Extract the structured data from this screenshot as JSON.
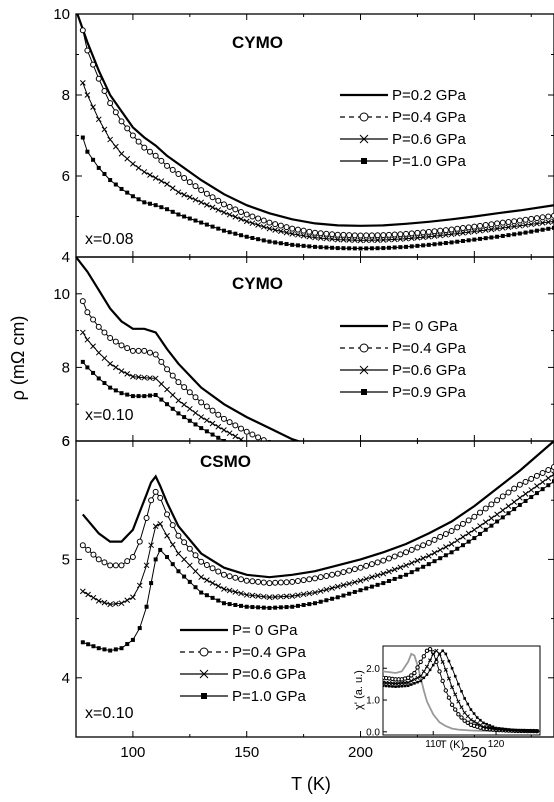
{
  "xlabel": "T (K)",
  "ylabel": "ρ (mΩ cm)",
  "chart_data": [
    {
      "type": "line",
      "title": "CYMO",
      "annotation": "x=0.08",
      "xlim": [
        75,
        285
      ],
      "ylim": [
        4,
        10
      ],
      "xticks": [
        100,
        150,
        200,
        250
      ],
      "yticks": [
        4,
        6,
        8,
        10
      ],
      "legend_position": "right",
      "series": [
        {
          "name": "P=0.2 GPa",
          "marker": "none",
          "dash": "solid",
          "x": [
            75,
            80,
            85,
            90,
            95,
            100,
            105,
            110,
            115,
            120,
            130,
            140,
            150,
            160,
            170,
            180,
            190,
            200,
            210,
            220,
            230,
            240,
            250,
            260,
            270,
            285
          ],
          "y": [
            10.1,
            9.3,
            8.6,
            8.0,
            7.6,
            7.2,
            6.95,
            6.75,
            6.5,
            6.3,
            5.9,
            5.55,
            5.28,
            5.08,
            4.93,
            4.83,
            4.78,
            4.77,
            4.78,
            4.82,
            4.87,
            4.93,
            5.0,
            5.08,
            5.15,
            5.28
          ]
        },
        {
          "name": "P=0.4 GPa",
          "marker": "circle",
          "dash": "dash",
          "x": [
            78,
            80,
            85,
            90,
            95,
            100,
            105,
            110,
            115,
            120,
            130,
            140,
            150,
            160,
            170,
            180,
            190,
            200,
            210,
            220,
            230,
            240,
            250,
            260,
            270,
            285
          ],
          "y": [
            9.6,
            9.1,
            8.4,
            7.8,
            7.35,
            7.0,
            6.7,
            6.5,
            6.25,
            6.05,
            5.65,
            5.3,
            5.05,
            4.85,
            4.7,
            4.6,
            4.55,
            4.53,
            4.54,
            4.57,
            4.62,
            4.68,
            4.75,
            4.83,
            4.9,
            5.02
          ]
        },
        {
          "name": "P=0.6 GPa",
          "marker": "cross",
          "dash": "solid",
          "x": [
            78,
            80,
            85,
            90,
            95,
            100,
            105,
            110,
            115,
            120,
            130,
            140,
            150,
            160,
            170,
            180,
            190,
            200,
            210,
            220,
            230,
            240,
            250,
            260,
            270,
            285
          ],
          "y": [
            8.3,
            8.0,
            7.4,
            6.9,
            6.55,
            6.3,
            6.1,
            5.95,
            5.8,
            5.6,
            5.35,
            5.1,
            4.88,
            4.7,
            4.57,
            4.48,
            4.43,
            4.41,
            4.42,
            4.45,
            4.5,
            4.56,
            4.63,
            4.7,
            4.77,
            4.88
          ]
        },
        {
          "name": "P=1.0 GPa",
          "marker": "square",
          "dash": "solid",
          "x": [
            78,
            80,
            85,
            90,
            95,
            100,
            105,
            110,
            115,
            120,
            130,
            140,
            150,
            160,
            170,
            180,
            190,
            200,
            210,
            220,
            230,
            240,
            250,
            260,
            270,
            285
          ],
          "y": [
            6.95,
            6.6,
            6.2,
            5.9,
            5.68,
            5.5,
            5.35,
            5.28,
            5.18,
            5.05,
            4.85,
            4.65,
            4.5,
            4.38,
            4.3,
            4.25,
            4.22,
            4.21,
            4.22,
            4.25,
            4.3,
            4.36,
            4.43,
            4.5,
            4.58,
            4.72
          ]
        }
      ]
    },
    {
      "type": "line",
      "title": "CYMO",
      "annotation": "x=0.10",
      "xlim": [
        75,
        285
      ],
      "ylim": [
        6,
        11
      ],
      "xticks": [
        100,
        150,
        200,
        250
      ],
      "yticks": [
        6,
        8,
        10
      ],
      "legend_position": "right",
      "series": [
        {
          "name": "P=  0  GPa",
          "marker": "none",
          "dash": "solid",
          "x": [
            75,
            80,
            85,
            90,
            95,
            100,
            105,
            110,
            115,
            120,
            130,
            140,
            150,
            160,
            170,
            180,
            190,
            200,
            210,
            220,
            230,
            240,
            250,
            260,
            270,
            285
          ],
          "y": [
            11.0,
            10.6,
            10.1,
            9.6,
            9.25,
            9.05,
            9.05,
            8.95,
            8.5,
            8.1,
            7.45,
            7.0,
            6.65,
            6.35,
            6.05,
            5.85,
            5.7,
            5.6,
            5.55,
            5.5,
            5.5,
            5.5,
            5.5,
            5.52,
            5.57,
            5.7
          ]
        },
        {
          "name": "P=0.4 GPa",
          "marker": "circle",
          "dash": "dash",
          "x": [
            78,
            80,
            85,
            90,
            95,
            100,
            105,
            110,
            115,
            120,
            130,
            140,
            150,
            160,
            170,
            180,
            190,
            200,
            210,
            220,
            230,
            240,
            250,
            260,
            270,
            285
          ],
          "y": [
            9.8,
            9.5,
            9.1,
            8.8,
            8.6,
            8.45,
            8.45,
            8.35,
            7.95,
            7.6,
            7.05,
            6.6,
            6.25,
            5.95,
            5.7,
            5.52,
            5.4,
            5.32,
            5.28,
            5.25,
            5.25,
            5.26,
            5.28,
            5.3,
            5.35,
            5.45
          ]
        },
        {
          "name": "P=0.6 GPa",
          "marker": "cross",
          "dash": "solid",
          "x": [
            78,
            80,
            85,
            90,
            95,
            100,
            105,
            110,
            115,
            120,
            130,
            140,
            150,
            160,
            170,
            180,
            190,
            200,
            210,
            220,
            230,
            240,
            250,
            260,
            270,
            285
          ],
          "y": [
            8.95,
            8.75,
            8.4,
            8.1,
            7.9,
            7.75,
            7.72,
            7.7,
            7.4,
            7.1,
            6.65,
            6.3,
            5.95,
            5.7,
            5.48,
            5.32,
            5.22,
            5.15,
            5.12,
            5.1,
            5.1,
            5.11,
            5.13,
            5.16,
            5.2,
            5.3
          ]
        },
        {
          "name": "P=0.9 GPa",
          "marker": "square",
          "dash": "solid",
          "x": [
            78,
            80,
            85,
            90,
            95,
            100,
            105,
            110,
            115,
            120,
            130,
            140,
            150,
            160,
            170,
            180,
            190,
            200,
            210,
            220,
            230,
            240,
            250,
            260,
            270,
            285
          ],
          "y": [
            8.15,
            8.0,
            7.7,
            7.45,
            7.3,
            7.22,
            7.22,
            7.25,
            7.0,
            6.75,
            6.35,
            6.0,
            5.7,
            5.48,
            5.3,
            5.15,
            5.07,
            5.02,
            5.0,
            4.99,
            4.99,
            5.0,
            5.02,
            5.05,
            5.1,
            5.2
          ]
        }
      ]
    },
    {
      "type": "line",
      "title": "CSMO",
      "annotation": "x=0.10",
      "xlim": [
        75,
        285
      ],
      "ylim": [
        3.5,
        6
      ],
      "xticks": [
        100,
        150,
        200,
        250
      ],
      "yticks": [
        4,
        5,
        6
      ],
      "legend_position": "bottom-left",
      "series": [
        {
          "name": "P=   0 GPa",
          "marker": "none",
          "dash": "solid",
          "x": [
            78,
            85,
            90,
            95,
            100,
            103,
            106,
            108,
            110,
            112,
            115,
            120,
            130,
            140,
            150,
            160,
            170,
            180,
            190,
            200,
            210,
            220,
            230,
            240,
            250,
            260,
            270,
            285
          ],
          "y": [
            5.38,
            5.22,
            5.15,
            5.15,
            5.25,
            5.4,
            5.55,
            5.65,
            5.7,
            5.62,
            5.48,
            5.28,
            5.05,
            4.93,
            4.87,
            4.85,
            4.87,
            4.9,
            4.95,
            5.0,
            5.06,
            5.13,
            5.22,
            5.32,
            5.45,
            5.6,
            5.75,
            6.0
          ]
        },
        {
          "name": "P=0.4 GPa",
          "marker": "circle",
          "dash": "dash",
          "x": [
            78,
            85,
            90,
            95,
            100,
            103,
            106,
            108,
            110,
            112,
            115,
            120,
            130,
            140,
            150,
            160,
            170,
            180,
            190,
            200,
            210,
            220,
            230,
            240,
            250,
            260,
            270,
            285
          ],
          "y": [
            5.12,
            5.0,
            4.95,
            4.95,
            5.02,
            5.15,
            5.35,
            5.5,
            5.57,
            5.52,
            5.38,
            5.2,
            4.98,
            4.87,
            4.82,
            4.8,
            4.81,
            4.84,
            4.88,
            4.93,
            4.99,
            5.06,
            5.14,
            5.24,
            5.36,
            5.5,
            5.63,
            5.78
          ]
        },
        {
          "name": "P=0.6 GPa",
          "marker": "cross",
          "dash": "solid",
          "x": [
            78,
            85,
            90,
            95,
            100,
            103,
            106,
            108,
            110,
            112,
            115,
            120,
            130,
            140,
            150,
            160,
            170,
            180,
            190,
            200,
            210,
            220,
            230,
            240,
            250,
            260,
            270,
            285
          ],
          "y": [
            4.73,
            4.65,
            4.62,
            4.63,
            4.68,
            4.78,
            4.95,
            5.12,
            5.28,
            5.3,
            5.2,
            5.05,
            4.85,
            4.75,
            4.7,
            4.68,
            4.69,
            4.72,
            4.77,
            4.82,
            4.88,
            4.95,
            5.03,
            5.13,
            5.25,
            5.38,
            5.52,
            5.72
          ]
        },
        {
          "name": "P=1.0 GPa",
          "marker": "square",
          "dash": "solid",
          "x": [
            78,
            85,
            90,
            95,
            100,
            103,
            106,
            108,
            110,
            112,
            115,
            120,
            130,
            140,
            150,
            160,
            170,
            180,
            190,
            200,
            210,
            220,
            230,
            240,
            250,
            260,
            270,
            285
          ],
          "y": [
            4.3,
            4.25,
            4.23,
            4.25,
            4.32,
            4.42,
            4.6,
            4.8,
            5.0,
            5.08,
            5.02,
            4.9,
            4.72,
            4.63,
            4.6,
            4.59,
            4.6,
            4.63,
            4.68,
            4.74,
            4.8,
            4.87,
            4.96,
            5.06,
            5.18,
            5.32,
            5.46,
            5.66
          ]
        }
      ]
    }
  ],
  "inset": {
    "type": "line",
    "xlabel": "T (K)",
    "ylabel": "χ' (a. u.)",
    "xlim": [
      102,
      127
    ],
    "ylim": [
      -0.1,
      2.7
    ],
    "xticks": [
      110,
      120
    ],
    "yticks": [
      0.0,
      1.0,
      2.0
    ],
    "ytick_labels": [
      "0.0",
      "1.0",
      "2.0"
    ],
    "series": [
      {
        "color": "#999999",
        "marker": "none",
        "x": [
          102,
          103,
          104,
          105,
          106,
          106.5,
          107,
          107.5,
          108,
          108.5,
          109,
          110,
          111,
          112,
          113,
          114,
          116,
          118,
          121,
          124,
          127
        ],
        "y": [
          1.9,
          1.88,
          1.85,
          1.9,
          2.2,
          2.45,
          2.4,
          2.1,
          1.7,
          1.3,
          0.95,
          0.55,
          0.3,
          0.18,
          0.1,
          0.07,
          0.04,
          0.03,
          0.02,
          0.02,
          0.02
        ]
      },
      {
        "color": "#000000",
        "marker": "circle",
        "x": [
          102,
          103,
          104,
          105,
          106,
          107,
          108,
          109,
          109.5,
          110,
          111,
          112,
          113,
          114,
          115,
          116,
          118,
          120,
          123,
          127
        ],
        "y": [
          1.7,
          1.68,
          1.65,
          1.65,
          1.7,
          1.85,
          2.2,
          2.55,
          2.6,
          2.5,
          1.9,
          1.3,
          0.85,
          0.55,
          0.35,
          0.22,
          0.1,
          0.06,
          0.03,
          0.02
        ]
      },
      {
        "color": "#000000",
        "marker": "cross",
        "x": [
          102,
          104,
          106,
          108,
          109,
          110,
          110.5,
          111,
          112,
          113,
          114,
          115,
          116,
          118,
          120,
          123,
          127
        ],
        "y": [
          1.55,
          1.52,
          1.55,
          1.75,
          2.05,
          2.45,
          2.55,
          2.45,
          1.95,
          1.4,
          0.95,
          0.6,
          0.38,
          0.15,
          0.08,
          0.04,
          0.02
        ]
      },
      {
        "color": "#000000",
        "marker": "square",
        "x": [
          102,
          104,
          106,
          108,
          109,
          110,
          111,
          111.5,
          112,
          113,
          114,
          115,
          116,
          117,
          118,
          120,
          123,
          127
        ],
        "y": [
          1.45,
          1.42,
          1.45,
          1.6,
          1.8,
          2.1,
          2.45,
          2.55,
          2.45,
          2.0,
          1.5,
          1.05,
          0.7,
          0.45,
          0.28,
          0.12,
          0.05,
          0.02
        ]
      }
    ]
  }
}
